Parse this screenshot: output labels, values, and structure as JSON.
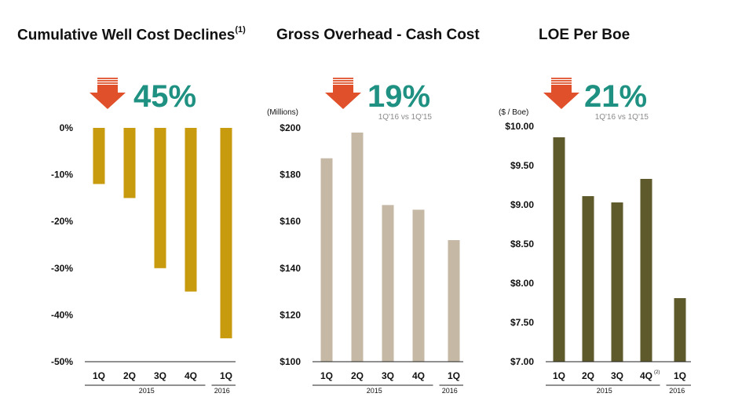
{
  "colors": {
    "accent": "#1f9182",
    "arrow": "#e0502a"
  },
  "chart_data": [
    {
      "type": "bar",
      "title": "Cumulative Well Cost Declines",
      "title_note": "(1)",
      "headline": "45%",
      "headline_note": "",
      "unit_label": "",
      "color": "#c89a0e",
      "categories": [
        "1Q",
        "2Q",
        "3Q",
        "4Q",
        "1Q"
      ],
      "groups": [
        {
          "label": "2015",
          "count": 4
        },
        {
          "label": "2016",
          "count": 1
        }
      ],
      "values": [
        -12,
        -15,
        -30,
        -35,
        -45
      ],
      "ylim": [
        -50,
        0
      ],
      "yticks": [
        0,
        -10,
        -20,
        -30,
        -40,
        -50
      ],
      "tick_labels": [
        "0%",
        "-10%",
        "-20%",
        "-30%",
        "-40%",
        "-50%"
      ]
    },
    {
      "type": "bar",
      "title": "Gross Overhead - Cash Cost",
      "title_note": "",
      "headline": "19%",
      "headline_note": "1Q'16 vs 1Q'15",
      "unit_label": "(Millions)",
      "color": "#c5b8a5",
      "categories": [
        "1Q",
        "2Q",
        "3Q",
        "4Q",
        "1Q"
      ],
      "groups": [
        {
          "label": "2015",
          "count": 4
        },
        {
          "label": "2016",
          "count": 1
        }
      ],
      "values": [
        187,
        198,
        167,
        165,
        152
      ],
      "ylim": [
        100,
        200
      ],
      "yticks": [
        200,
        180,
        160,
        140,
        120,
        100
      ],
      "tick_labels": [
        "$200",
        "$180",
        "$160",
        "$140",
        "$120",
        "$100"
      ]
    },
    {
      "type": "bar",
      "title": "LOE Per Boe",
      "title_note": "",
      "headline": "21%",
      "headline_note": "1Q'16 vs 1Q'15",
      "unit_label": "($ / Boe)",
      "color": "#5f5a2c",
      "categories": [
        "1Q",
        "2Q",
        "3Q",
        "4Q",
        "1Q"
      ],
      "category_notes": [
        "",
        "",
        "",
        "(2)",
        ""
      ],
      "groups": [
        {
          "label": "2015",
          "count": 4
        },
        {
          "label": "2016",
          "count": 1
        }
      ],
      "values": [
        9.86,
        9.11,
        9.03,
        9.33,
        7.81
      ],
      "ylim": [
        7.0,
        10.0
      ],
      "yticks": [
        10.0,
        9.5,
        9.0,
        8.5,
        8.0,
        7.5,
        7.0
      ],
      "tick_labels": [
        "$10.00",
        "$9.50",
        "$9.00",
        "$8.50",
        "$8.00",
        "$7.50",
        "$7.00"
      ]
    }
  ]
}
